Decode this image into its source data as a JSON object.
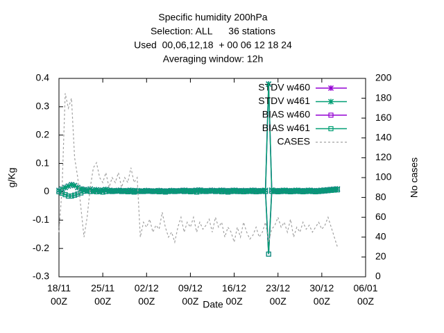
{
  "chart_data": {
    "type": "line",
    "title_lines": [
      "Specific humidity 200hPa",
      "Selection: ALL      36 stations",
      "Used  00,06,12,18  + 00 06 12 18 24",
      "Averaging window: 12h"
    ],
    "xlabel": "Date",
    "ylabel": "g/Kg",
    "y2label": "No cases",
    "x": [
      "18/11 00Z",
      "18/11 12Z",
      "19/11 00Z",
      "19/11 12Z",
      "20/11 00Z",
      "20/11 12Z",
      "21/11 00Z",
      "21/11 12Z",
      "22/11 00Z",
      "22/11 12Z",
      "23/11 00Z",
      "23/11 12Z",
      "24/11 00Z",
      "24/11 12Z",
      "25/11 00Z",
      "25/11 12Z",
      "26/11 00Z",
      "26/11 12Z",
      "27/11 00Z",
      "27/11 12Z",
      "28/11 00Z",
      "28/11 12Z",
      "29/11 00Z",
      "29/11 12Z",
      "30/11 00Z",
      "30/11 12Z",
      "01/12 00Z",
      "01/12 12Z",
      "02/12 00Z",
      "02/12 12Z",
      "03/12 00Z",
      "03/12 12Z",
      "04/12 00Z",
      "04/12 12Z",
      "05/12 00Z",
      "05/12 12Z",
      "06/12 00Z",
      "06/12 12Z",
      "07/12 00Z",
      "07/12 12Z",
      "08/12 00Z",
      "08/12 12Z",
      "09/12 00Z",
      "09/12 12Z",
      "10/12 00Z",
      "10/12 12Z",
      "11/12 00Z",
      "11/12 12Z",
      "12/12 00Z",
      "12/12 12Z",
      "13/12 00Z",
      "13/12 12Z",
      "14/12 00Z",
      "14/12 12Z",
      "15/12 00Z",
      "15/12 12Z",
      "16/12 00Z",
      "16/12 12Z",
      "17/12 00Z",
      "17/12 12Z",
      "18/12 00Z",
      "18/12 12Z",
      "19/12 00Z",
      "19/12 12Z",
      "20/12 00Z",
      "20/12 12Z",
      "21/12 00Z",
      "21/12 12Z",
      "22/12 00Z",
      "22/12 12Z",
      "23/12 00Z",
      "23/12 12Z",
      "24/12 00Z",
      "24/12 12Z",
      "25/12 00Z",
      "25/12 12Z",
      "26/12 00Z",
      "26/12 12Z",
      "27/12 00Z",
      "27/12 12Z",
      "28/12 00Z",
      "28/12 12Z",
      "29/12 00Z",
      "29/12 12Z",
      "30/12 00Z",
      "30/12 12Z",
      "31/12 00Z",
      "31/12 12Z",
      "01/01 00Z",
      "01/01 12Z"
    ],
    "xlim": [
      "18/11 00Z",
      "06/01 00Z"
    ],
    "xticks": [
      "18/11 00Z",
      "25/11 00Z",
      "02/12 00Z",
      "09/12 00Z",
      "16/12 00Z",
      "23/12 00Z",
      "30/12 00Z",
      "06/01 00Z"
    ],
    "ylim": [
      -0.3,
      0.4
    ],
    "yticks": [
      0.4,
      0.3,
      0.2,
      0.1,
      0,
      -0.1,
      -0.2,
      -0.3
    ],
    "y2lim": [
      0,
      200
    ],
    "y2ticks": [
      0,
      20,
      40,
      60,
      80,
      100,
      120,
      140,
      160,
      180,
      200
    ],
    "legend": "top-right",
    "series": [
      {
        "name": "STDV w460",
        "color": "#9400d3",
        "marker": "x",
        "values": [
          0.005,
          0.01,
          0.015,
          0.02,
          0.025,
          0.022,
          0.015,
          0.01,
          0.008,
          0.006,
          0.01,
          0.005,
          0.007,
          0.004,
          0.006,
          0.008,
          0.005,
          0.004,
          0.003,
          0.005,
          0.004,
          0.003,
          0.004,
          0.005,
          0.003,
          0.004,
          0.002,
          0.003,
          0.004,
          0.003,
          0.002,
          0.003,
          0.004,
          0.003,
          0.002,
          0.003,
          0.004,
          0.003,
          0.003,
          0.004,
          0.005,
          0.004,
          0.003,
          0.004,
          0.005,
          0.006,
          0.004,
          0.003,
          0.004,
          0.005,
          0.003,
          0.004,
          0.005,
          0.004,
          0.003,
          0.004,
          0.005,
          0.004,
          0.003,
          0.004,
          0.003,
          0.004,
          0.005,
          0.004,
          0.003,
          0.004,
          0.005,
          0.38,
          0.006,
          0.004,
          0.003,
          0.004,
          0.005,
          0.004,
          0.003,
          0.004,
          0.005,
          0.004,
          0.003,
          0.004,
          0.005,
          0.004,
          0.003,
          0.004,
          0.005,
          0.006,
          0.007,
          0.008,
          0.009,
          0.01
        ]
      },
      {
        "name": "STDV w461",
        "color": "#009e73",
        "marker": "x",
        "values": [
          0.005,
          0.01,
          0.015,
          0.02,
          0.025,
          0.022,
          0.015,
          0.01,
          0.008,
          0.006,
          0.01,
          0.005,
          0.007,
          0.004,
          0.006,
          0.008,
          0.005,
          0.004,
          0.003,
          0.005,
          0.004,
          0.003,
          0.004,
          0.005,
          0.003,
          0.004,
          0.002,
          0.003,
          0.004,
          0.003,
          0.002,
          0.003,
          0.004,
          0.003,
          0.002,
          0.003,
          0.004,
          0.003,
          0.003,
          0.004,
          0.005,
          0.004,
          0.003,
          0.004,
          0.005,
          0.006,
          0.004,
          0.003,
          0.004,
          0.005,
          0.003,
          0.004,
          0.005,
          0.004,
          0.003,
          0.004,
          0.005,
          0.004,
          0.003,
          0.004,
          0.003,
          0.004,
          0.005,
          0.004,
          0.003,
          0.004,
          0.005,
          0.38,
          0.006,
          0.004,
          0.003,
          0.004,
          0.005,
          0.004,
          0.003,
          0.004,
          0.005,
          0.004,
          0.003,
          0.004,
          0.005,
          0.004,
          0.003,
          0.004,
          0.005,
          0.006,
          0.007,
          0.008,
          0.009,
          0.01
        ]
      },
      {
        "name": "BIAS w460",
        "color": "#9400d3",
        "marker": "square",
        "values": [
          0,
          -0.005,
          -0.01,
          -0.015,
          -0.015,
          -0.012,
          -0.008,
          -0.004,
          0.002,
          0.003,
          0.001,
          0.002,
          0,
          0.001,
          -0.001,
          0.001,
          0.002,
          0.001,
          0.002,
          0.003,
          0.001,
          0.002,
          0,
          0.001,
          -0.001,
          0.001,
          0.002,
          0.001,
          0.002,
          0.003,
          0.001,
          0.002,
          0,
          0.001,
          -0.001,
          0.001,
          0.002,
          0.001,
          0.002,
          0.003,
          0.001,
          0.002,
          0,
          0.001,
          -0.001,
          0.001,
          0.002,
          0.001,
          0.002,
          0.003,
          0.001,
          0.002,
          0,
          0.001,
          -0.001,
          0.001,
          0.002,
          0.001,
          0.001,
          0,
          0.001,
          0.002,
          0.001,
          0,
          0.001,
          0.002,
          0.001,
          -0.22,
          0.002,
          0.001,
          0,
          0.001,
          0.002,
          0.001,
          0,
          0.001,
          0.002,
          0.001,
          0,
          0.001,
          0.002,
          0.001,
          0,
          0.001,
          0.002,
          0.003,
          0.004,
          0.005,
          0.006,
          0.007
        ]
      },
      {
        "name": "BIAS w461",
        "color": "#009e73",
        "marker": "square",
        "values": [
          0,
          -0.005,
          -0.01,
          -0.015,
          -0.015,
          -0.012,
          -0.008,
          -0.004,
          0.002,
          0.003,
          0.001,
          0.002,
          0,
          0.001,
          -0.001,
          0.001,
          0.002,
          0.001,
          0.002,
          0.003,
          0.001,
          0.002,
          0,
          0.001,
          -0.001,
          0.001,
          0.002,
          0.001,
          0.002,
          0.003,
          0.001,
          0.002,
          0,
          0.001,
          -0.001,
          0.001,
          0.002,
          0.001,
          0.002,
          0.003,
          0.001,
          0.002,
          0,
          0.001,
          -0.001,
          0.001,
          0.002,
          0.001,
          0.002,
          0.003,
          0.001,
          0.002,
          0,
          0.001,
          -0.001,
          0.001,
          0.002,
          0.001,
          0.001,
          0,
          0.001,
          0.002,
          0.001,
          0,
          0.001,
          0.002,
          0.001,
          -0.22,
          0.002,
          0.001,
          0,
          0.001,
          0.002,
          0.001,
          0,
          0.001,
          0.002,
          0.001,
          0,
          0.001,
          0.002,
          0.001,
          0,
          0.001,
          0.002,
          0.003,
          0.004,
          0.005,
          0.006,
          0.007
        ]
      },
      {
        "name": "CASES",
        "color": "#a0a0a0",
        "dashed": true,
        "axis": "y2",
        "values": [
          45,
          90,
          185,
          170,
          180,
          120,
          100,
          70,
          40,
          60,
          90,
          110,
          115,
          100,
          95,
          105,
          90,
          100,
          95,
          105,
          90,
          100,
          95,
          110,
          95,
          100,
          40,
          55,
          50,
          58,
          45,
          52,
          48,
          65,
          50,
          40,
          45,
          35,
          50,
          60,
          45,
          55,
          50,
          60,
          45,
          55,
          48,
          52,
          58,
          45,
          60,
          50,
          55,
          40,
          50,
          45,
          35,
          50,
          40,
          55,
          45,
          38,
          42,
          50,
          40,
          45,
          55,
          35,
          48,
          52,
          60,
          50,
          55,
          45,
          58,
          40,
          50,
          45,
          55,
          48,
          52,
          45,
          50,
          55,
          48,
          52,
          60,
          50,
          40,
          30
        ]
      }
    ]
  }
}
